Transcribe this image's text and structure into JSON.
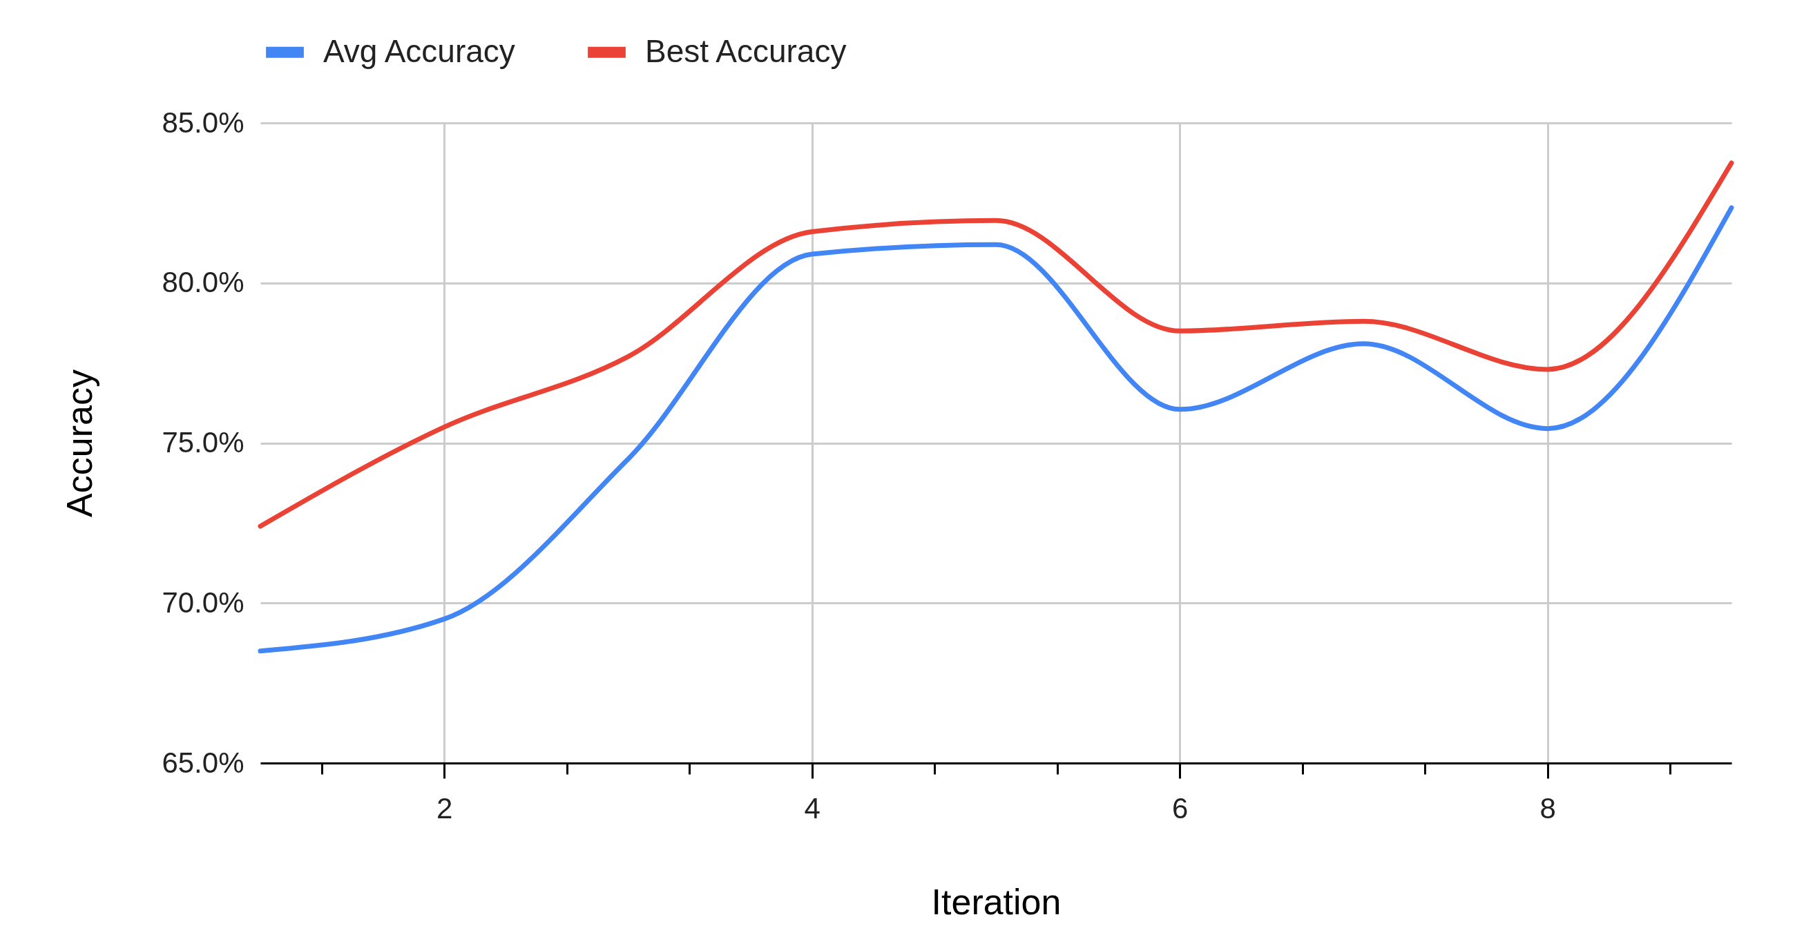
{
  "chart_data": {
    "type": "line",
    "xlabel": "Iteration",
    "ylabel": "Accuracy",
    "x": [
      1,
      2,
      3,
      4,
      5,
      6,
      7,
      8,
      9
    ],
    "series": [
      {
        "name": "Avg Accuracy",
        "color": "#4285f4",
        "values": [
          68.5,
          69.5,
          74.5,
          80.9,
          81.2,
          76.05,
          78.1,
          75.45,
          82.35
        ]
      },
      {
        "name": "Best Accuracy",
        "color": "#ea4335",
        "values": [
          72.4,
          75.5,
          77.7,
          81.6,
          81.95,
          78.5,
          78.8,
          77.3,
          83.75
        ]
      }
    ],
    "xlim": [
      1,
      9
    ],
    "xticks": [
      {
        "value": 1.3333,
        "label": null
      },
      2,
      {
        "value": 2.6667,
        "label": null
      },
      {
        "value": 3.3333,
        "label": null
      },
      4,
      {
        "value": 4.6667,
        "label": null
      },
      {
        "value": 5.3333,
        "label": null
      },
      6,
      {
        "value": 6.6667,
        "label": null
      },
      {
        "value": 7.3333,
        "label": null
      },
      8,
      {
        "value": 8.6667,
        "label": null
      }
    ],
    "ylim": [
      65,
      85
    ],
    "yticks": [
      {
        "value": 65,
        "label": "65.0%"
      },
      {
        "value": 70,
        "label": "70.0%"
      },
      {
        "value": 75,
        "label": "75.0%"
      },
      {
        "value": 80,
        "label": "80.0%"
      },
      {
        "value": 85,
        "label": "85.0%"
      }
    ],
    "grid": true,
    "legend": "top",
    "marker": "none",
    "line_style": "solid"
  }
}
